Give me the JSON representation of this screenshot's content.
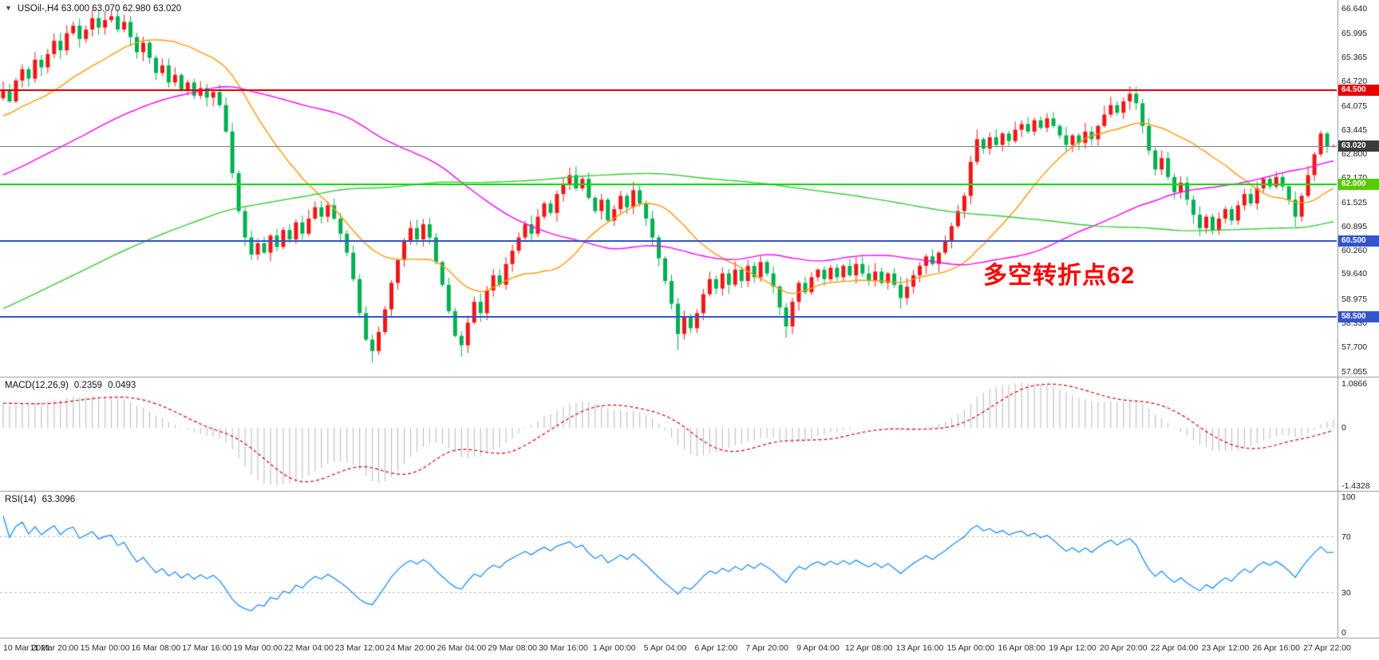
{
  "header": {
    "dropdown_icon": "▼",
    "symbol_ohlc": "USOil-,H4 63.000 63.070 62.980 63.020"
  },
  "annotation": {
    "text": "多空转折点62",
    "color": "#ff0000"
  },
  "panels": {
    "macd": {
      "title": "MACD(12,26,9)",
      "main_value": "0.2359",
      "signal_value": "0.0493",
      "axis_labels": [
        "1.0866",
        "0",
        "-1.4328"
      ]
    },
    "rsi": {
      "title": "RSI(14)",
      "value": "63.3096",
      "axis_labels": [
        "100",
        "70",
        "30",
        "0"
      ]
    }
  },
  "price_axis_labels": [
    "66.640",
    "65.995",
    "65.365",
    "64.720",
    "64.075",
    "63.445",
    "62.800",
    "62.170",
    "61.525",
    "60.895",
    "60.260",
    "59.640",
    "58.975",
    "58.330",
    "57.700",
    "57.055"
  ],
  "time_axis_labels": [
    "10 Mar 2021",
    "11 Mar 20:00",
    "15 Mar 00:00",
    "16 Mar 08:00",
    "17 Mar 16:00",
    "19 Mar 00:00",
    "22 Mar 04:00",
    "23 Mar 12:00",
    "24 Mar 20:00",
    "26 Mar 04:00",
    "29 Mar 08:00",
    "30 Mar 16:00",
    "1 Apr 00:00",
    "5 Apr 04:00",
    "6 Apr 12:00",
    "7 Apr 20:00",
    "9 Apr 04:00",
    "12 Apr 08:00",
    "13 Apr 16:00",
    "15 Apr 00:00",
    "16 Apr 08:00",
    "19 Apr 12:00",
    "20 Apr 20:00",
    "22 Apr 04:00",
    "23 Apr 12:00",
    "26 Apr 16:00",
    "27 Apr 22:00"
  ],
  "colors": {
    "background": "#ffffff",
    "candle_up": "#f21616",
    "candle_down": "#00b050",
    "axis_text": "#1c1c1c"
  },
  "chart_data": {
    "type": "candlestick",
    "symbol": "USOil-",
    "timeframe": "H4",
    "latest_ohlc": {
      "open": 63.0,
      "high": 63.07,
      "low": 62.98,
      "close": 63.02
    },
    "y_range": [
      56.92,
      66.88
    ],
    "bars_per_time_label": 8,
    "closes": [
      64.5,
      64.2,
      64.75,
      65.05,
      64.8,
      65.3,
      65.1,
      65.45,
      65.8,
      65.55,
      66.0,
      66.2,
      65.85,
      66.1,
      66.4,
      66.15,
      66.35,
      66.45,
      66.1,
      66.3,
      65.9,
      65.5,
      65.75,
      65.35,
      64.95,
      65.15,
      64.7,
      64.9,
      64.5,
      64.7,
      64.35,
      64.55,
      64.3,
      64.45,
      64.1,
      63.4,
      62.3,
      61.3,
      60.6,
      60.15,
      60.45,
      60.2,
      60.65,
      60.35,
      60.8,
      60.55,
      61.0,
      60.7,
      61.1,
      61.4,
      61.15,
      61.45,
      61.1,
      60.7,
      60.2,
      59.5,
      58.6,
      57.9,
      57.6,
      58.1,
      58.7,
      59.4,
      60.0,
      60.5,
      60.85,
      60.55,
      60.95,
      60.6,
      59.95,
      59.35,
      58.65,
      58.0,
      57.75,
      58.35,
      58.9,
      58.6,
      59.2,
      59.6,
      59.35,
      59.9,
      60.25,
      60.6,
      60.95,
      60.7,
      61.15,
      61.5,
      61.25,
      61.75,
      62.0,
      62.25,
      61.9,
      62.15,
      61.65,
      61.3,
      61.6,
      61.05,
      61.35,
      61.7,
      61.4,
      61.85,
      61.5,
      61.1,
      60.6,
      60.05,
      59.45,
      58.85,
      58.05,
      58.5,
      58.2,
      58.6,
      59.1,
      59.5,
      59.25,
      59.65,
      59.35,
      59.75,
      59.45,
      59.85,
      59.55,
      59.95,
      59.65,
      59.3,
      58.75,
      58.25,
      58.9,
      59.4,
      59.15,
      59.55,
      59.75,
      59.5,
      59.8,
      59.55,
      59.85,
      59.6,
      59.9,
      59.65,
      59.45,
      59.7,
      59.4,
      59.65,
      59.35,
      59.0,
      59.3,
      59.6,
      59.85,
      60.1,
      59.9,
      60.2,
      60.5,
      60.9,
      61.3,
      61.7,
      62.6,
      63.2,
      62.95,
      63.25,
      63.05,
      63.35,
      63.15,
      63.45,
      63.6,
      63.4,
      63.7,
      63.5,
      63.75,
      63.55,
      63.3,
      63.05,
      63.3,
      63.1,
      63.4,
      63.2,
      63.55,
      63.85,
      64.1,
      63.9,
      64.2,
      64.4,
      64.15,
      63.55,
      62.9,
      62.4,
      62.7,
      62.2,
      61.8,
      62.05,
      61.6,
      61.2,
      60.85,
      61.15,
      60.8,
      61.1,
      61.35,
      61.05,
      61.45,
      61.75,
      61.5,
      61.9,
      62.15,
      61.95,
      62.2,
      61.95,
      61.6,
      61.15,
      61.7,
      62.25,
      62.8,
      63.35,
      63.0,
      63.02
    ],
    "wick_overrides": {
      "17": {
        "high": 66.6
      },
      "58": {
        "low": 57.3
      },
      "72": {
        "low": 57.45
      },
      "106": {
        "low": 57.62
      },
      "123": {
        "low": 57.95
      },
      "141": {
        "low": 58.72
      },
      "153": {
        "high": 63.45
      },
      "177": {
        "high": 64.6
      },
      "203": {
        "low": 60.88
      },
      "207": {
        "high": 63.42
      },
      "209": {
        "high": 63.07,
        "low": 62.98
      }
    },
    "warmup": {
      "start": 52.0,
      "end": 64.5,
      "count": 160
    },
    "moving_averages": [
      {
        "period": 20,
        "color": "#ff9900"
      },
      {
        "period": 60,
        "color": "#ff00ff"
      },
      {
        "period": 150,
        "color": "#32cd32"
      }
    ],
    "horizontal_lines": [
      {
        "value": 64.5,
        "label": "64.500",
        "color": "#e60000",
        "badge_color": "#e60000",
        "badge_text_color": "#ffffff"
      },
      {
        "value": 62.0,
        "label": "62.000",
        "color": "#00dd00",
        "badge_color": "#55cc00",
        "badge_text_color": "#ffffff"
      },
      {
        "value": 60.5,
        "label": "60.500",
        "color": "#3355cc",
        "badge_color": "#3355cc",
        "badge_text_color": "#ffffff"
      },
      {
        "value": 58.5,
        "label": "58.500",
        "color": "#3355cc",
        "badge_color": "#3355cc",
        "badge_text_color": "#ffffff"
      }
    ],
    "current_price": {
      "value": 63.02,
      "label": "63.020",
      "line_color": "#808080",
      "badge_color": "#3c3c3c",
      "badge_text_color": "#ffffff"
    },
    "macd": {
      "fast": 12,
      "slow": 26,
      "signal_period": 9,
      "histogram_color": "#b8b8b8",
      "signal_color": "#dd0000",
      "latest_main": 0.2359,
      "latest_signal": 0.0493,
      "axis_max": 1.0866,
      "axis_min": -1.4328
    },
    "rsi": {
      "period": 14,
      "color": "#1e90ff",
      "levels": [
        70,
        30
      ],
      "latest": 63.3096
    }
  }
}
